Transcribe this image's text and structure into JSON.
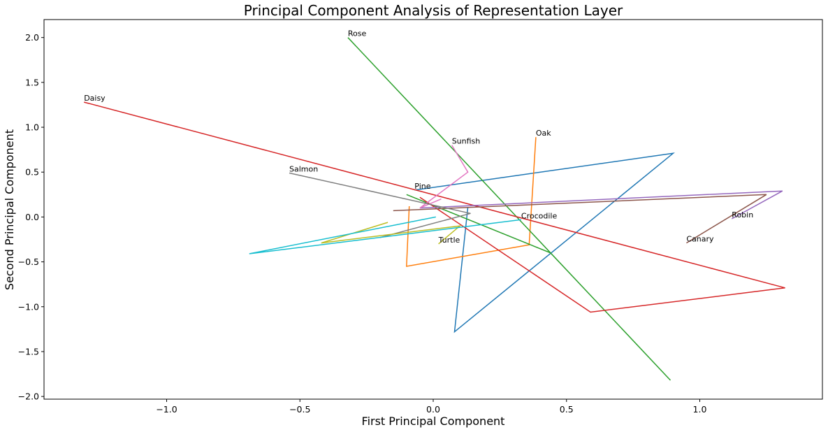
{
  "chart_data": {
    "type": "line",
    "title": "Principal Component Analysis of Representation Layer",
    "xlabel": "First Principal Component",
    "ylabel": "Second Principal Component",
    "xlim": [
      -1.46,
      1.46
    ],
    "ylim": [
      -2.03,
      2.2
    ],
    "xticks": [
      -1.0,
      -0.5,
      0.0,
      0.5,
      1.0
    ],
    "xtick_labels": [
      "−1.0",
      "−0.5",
      "0.0",
      "0.5",
      "1.0"
    ],
    "yticks": [
      -2.0,
      -1.5,
      -1.0,
      -0.5,
      0.0,
      0.5,
      1.0,
      1.5,
      2.0
    ],
    "ytick_labels": [
      "−2.0",
      "−1.5",
      "−1.0",
      "−0.5",
      "0.0",
      "0.5",
      "1.0",
      "1.5",
      "2.0"
    ],
    "grid": false,
    "series": [
      {
        "label": "Pine",
        "color": "#1f77b4",
        "points": [
          [
            -0.07,
            0.3
          ],
          [
            0.9,
            0.71
          ],
          [
            0.08,
            -1.28
          ],
          [
            0.13,
            0.11
          ]
        ]
      },
      {
        "label": "Oak",
        "color": "#ff7f0e",
        "points": [
          [
            0.385,
            0.89
          ],
          [
            0.36,
            -0.31
          ],
          [
            -0.1,
            -0.55
          ],
          [
            -0.09,
            0.12
          ]
        ]
      },
      {
        "label": "Rose",
        "color": "#2ca02c",
        "points": [
          [
            -0.32,
            2.0
          ],
          [
            0.89,
            -1.82
          ],
          [
            0.44,
            -0.4
          ],
          [
            -0.1,
            0.25
          ]
        ]
      },
      {
        "label": "Daisy",
        "color": "#d62728",
        "points": [
          [
            -1.31,
            1.28
          ],
          [
            1.32,
            -0.79
          ],
          [
            0.59,
            -1.06
          ],
          [
            -0.05,
            0.22
          ]
        ]
      },
      {
        "label": "Robin",
        "color": "#9467bd",
        "points": [
          [
            1.12,
            -0.02
          ],
          [
            1.31,
            0.29
          ],
          [
            -0.05,
            0.1
          ]
        ]
      },
      {
        "label": "Canary",
        "color": "#8c564b",
        "points": [
          [
            0.95,
            -0.29
          ],
          [
            1.25,
            0.25
          ],
          [
            -0.15,
            0.07
          ]
        ]
      },
      {
        "label": "Sunfish",
        "color": "#e377c2",
        "points": [
          [
            0.07,
            0.8
          ],
          [
            0.13,
            0.5
          ],
          [
            -0.05,
            0.1
          ],
          [
            0.03,
            0.2
          ]
        ]
      },
      {
        "label": "Salmon",
        "color": "#7f7f7f",
        "points": [
          [
            -0.54,
            0.49
          ],
          [
            0.14,
            0.04
          ],
          [
            -0.2,
            -0.23
          ]
        ]
      },
      {
        "label": "Turtle",
        "color": "#bcbd22",
        "points": [
          [
            0.02,
            -0.3
          ],
          [
            0.1,
            -0.1
          ],
          [
            -0.42,
            -0.29
          ],
          [
            -0.17,
            -0.06
          ]
        ]
      },
      {
        "label": "Crocodile",
        "color": "#17becf",
        "points": [
          [
            0.33,
            -0.03
          ],
          [
            -0.69,
            -0.41
          ],
          [
            0.01,
            0.0
          ]
        ]
      }
    ]
  }
}
